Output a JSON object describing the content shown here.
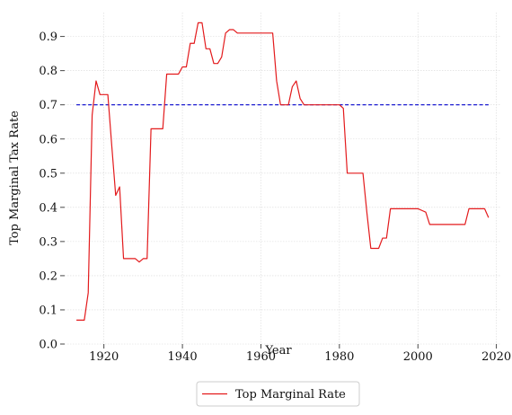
{
  "chart_data": {
    "type": "line",
    "xlabel": "Year",
    "ylabel": "Top Marginal Tax Rate",
    "xlim": [
      1910,
      2021
    ],
    "ylim": [
      0,
      0.97
    ],
    "xticks": [
      1920,
      1940,
      1960,
      1980,
      2000,
      2020
    ],
    "yticks": [
      0.0,
      0.1,
      0.2,
      0.3,
      0.4,
      0.5,
      0.6,
      0.7,
      0.8,
      0.9
    ],
    "grid": true,
    "legend_placement": "bottom-center",
    "series": [
      {
        "name": "Top Marginal Rate",
        "color": "#e31a1c",
        "x": [
          1913,
          1914,
          1915,
          1916,
          1917,
          1918,
          1919,
          1920,
          1921,
          1922,
          1923,
          1924,
          1925,
          1926,
          1927,
          1928,
          1929,
          1930,
          1931,
          1932,
          1933,
          1934,
          1935,
          1936,
          1937,
          1938,
          1939,
          1940,
          1941,
          1942,
          1943,
          1944,
          1945,
          1946,
          1947,
          1948,
          1949,
          1950,
          1951,
          1952,
          1953,
          1954,
          1955,
          1956,
          1957,
          1958,
          1959,
          1960,
          1961,
          1962,
          1963,
          1964,
          1965,
          1966,
          1967,
          1968,
          1969,
          1970,
          1971,
          1972,
          1973,
          1974,
          1975,
          1976,
          1977,
          1978,
          1979,
          1980,
          1981,
          1982,
          1983,
          1984,
          1985,
          1986,
          1987,
          1988,
          1989,
          1990,
          1991,
          1992,
          1993,
          1994,
          1995,
          1996,
          1997,
          1998,
          1999,
          2000,
          2001,
          2002,
          2003,
          2004,
          2005,
          2006,
          2007,
          2008,
          2009,
          2010,
          2011,
          2012,
          2013,
          2014,
          2015,
          2016,
          2017,
          2018
        ],
        "values": [
          0.07,
          0.07,
          0.07,
          0.15,
          0.67,
          0.77,
          0.73,
          0.73,
          0.73,
          0.58,
          0.435,
          0.46,
          0.25,
          0.25,
          0.25,
          0.25,
          0.24,
          0.25,
          0.25,
          0.63,
          0.63,
          0.63,
          0.63,
          0.79,
          0.79,
          0.79,
          0.79,
          0.811,
          0.811,
          0.88,
          0.88,
          0.94,
          0.94,
          0.864,
          0.864,
          0.821,
          0.821,
          0.84,
          0.91,
          0.92,
          0.92,
          0.91,
          0.91,
          0.91,
          0.91,
          0.91,
          0.91,
          0.91,
          0.91,
          0.91,
          0.91,
          0.77,
          0.7,
          0.7,
          0.7,
          0.753,
          0.77,
          0.718,
          0.7,
          0.7,
          0.7,
          0.7,
          0.7,
          0.7,
          0.7,
          0.7,
          0.7,
          0.7,
          0.69,
          0.5,
          0.5,
          0.5,
          0.5,
          0.5,
          0.385,
          0.28,
          0.28,
          0.28,
          0.31,
          0.31,
          0.396,
          0.396,
          0.396,
          0.396,
          0.396,
          0.396,
          0.396,
          0.396,
          0.391,
          0.386,
          0.35,
          0.35,
          0.35,
          0.35,
          0.35,
          0.35,
          0.35,
          0.35,
          0.35,
          0.35,
          0.396,
          0.396,
          0.396,
          0.396,
          0.396,
          0.37
        ]
      }
    ],
    "reference_line": {
      "y": 0.7,
      "x_start": 1913,
      "x_end": 2018,
      "color": "#0000cc",
      "style": "dashed"
    }
  }
}
